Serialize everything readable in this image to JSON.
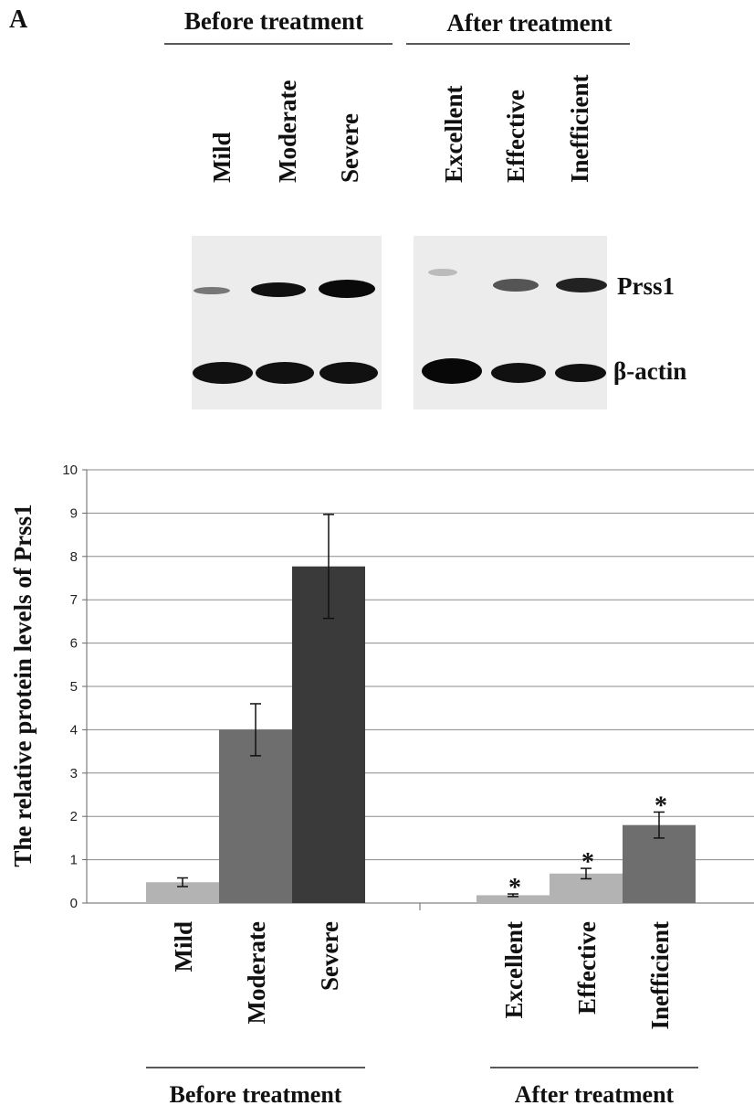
{
  "panel_label": "A",
  "blot": {
    "groups": [
      {
        "title": "Before treatment",
        "lanes": [
          "Mild",
          "Moderate",
          "Severe"
        ]
      },
      {
        "title": "After treatment",
        "lanes": [
          "Excellent",
          "Effective",
          "Inefficient"
        ]
      }
    ],
    "bands": [
      "Prss1",
      "β-actin"
    ]
  },
  "chart_data": {
    "type": "bar",
    "ylabel": "The relative protein levels of Prss1",
    "ylim": [
      0,
      10
    ],
    "yticks": [
      0,
      1,
      2,
      3,
      4,
      5,
      6,
      7,
      8,
      9,
      10
    ],
    "grid": true,
    "groups": [
      {
        "name": "Before treatment",
        "categories": [
          "Mild",
          "Moderate",
          "Severe"
        ],
        "values": [
          0.48,
          4,
          7.77
        ],
        "errors": [
          0.1,
          0.6,
          1.2
        ],
        "colors": [
          "#b3b3b3",
          "#6e6e6e",
          "#3a3a3a"
        ]
      },
      {
        "name": "After treatment",
        "categories": [
          "Excellent",
          "Effective",
          "Inefficient"
        ],
        "values": [
          0.18,
          0.68,
          1.8
        ],
        "errors": [
          0.03,
          0.12,
          0.3
        ],
        "colors": [
          "#b3b3b3",
          "#b3b3b3",
          "#6e6e6e"
        ],
        "annotations": [
          "*",
          "*",
          "*"
        ]
      }
    ]
  }
}
